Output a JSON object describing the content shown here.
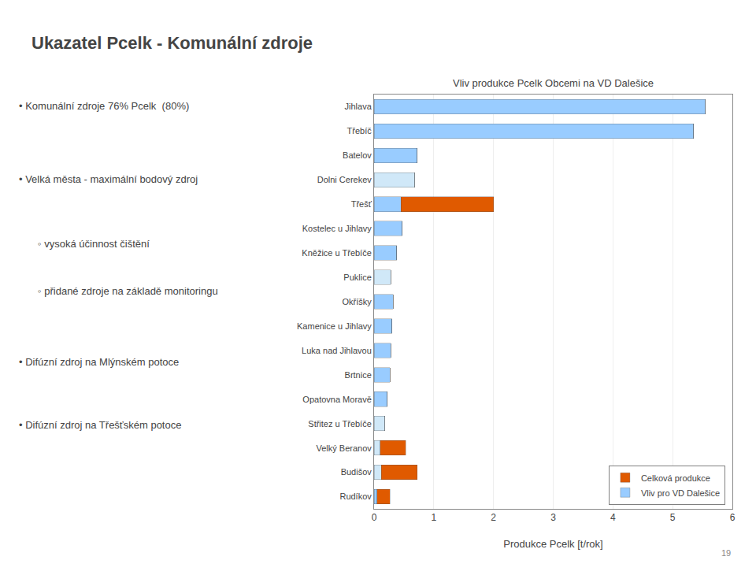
{
  "chart_data": {
    "type": "bar",
    "orientation": "horizontal",
    "stacked": true,
    "title": "Vliv produkce Pcelk Obcemi na VD Dalešice",
    "xlabel": "Produkce Pcelk [t/rok]",
    "categories": [
      "Jihlava",
      "Třebíč",
      "Batelov",
      "Dolni Cerekev",
      "Třešť",
      "Kostelec u Jihlavy",
      "Kněžice u Třebíče",
      "Puklice",
      "Okříšky",
      "Kamenice u Jihlavy",
      "Luka nad Jihlavou",
      "Brtnice",
      "Opatovna Moravě",
      "Střitez u Třebíče",
      "Velký Beranov",
      "Budišov",
      "Rudíkov"
    ],
    "series": [
      {
        "name": "Vliv pro VD Dalešice",
        "colors": [
          "#99ccff",
          "#99ccff",
          "#99ccff",
          "#d0e8f8",
          "#99ccff",
          "#99ccff",
          "#99ccff",
          "#d0e8f8",
          "#99ccff",
          "#99ccff",
          "#99ccff",
          "#99ccff",
          "#99ccff",
          "#d0e8f8",
          "#d0e8f8",
          "#d0e8f8",
          "#99ccff"
        ],
        "values": [
          5.55,
          5.35,
          0.72,
          0.68,
          0.45,
          0.47,
          0.38,
          0.28,
          0.32,
          0.3,
          0.28,
          0.27,
          0.22,
          0.18,
          0.1,
          0.12,
          0.05
        ]
      },
      {
        "name": "Celková produkce",
        "color": "#e05a00",
        "values": [
          0.0,
          0.0,
          0.0,
          0.0,
          1.55,
          0.0,
          0.0,
          0.0,
          0.0,
          0.0,
          0.0,
          0.0,
          0.0,
          0.0,
          0.43,
          0.6,
          0.22
        ]
      }
    ],
    "xlim": [
      0,
      6
    ],
    "xticks": [
      0,
      1,
      2,
      3,
      4,
      5,
      6
    ],
    "grid": true,
    "legend": "lower right",
    "annotations": [
      "Ukazatel Pcelk - Komunální zdroje",
      "• Komunální zdroje 76% Pcelk  (80%)",
      "• Velká města - maximální bodový zdroj",
      "◦ vysoká účinnost čištění",
      "◦ přidané zdroje na základě monitoringu",
      "• Difúzní zdroj na Mlýnském potoce",
      "• Difúzní zdroj na Třešťském potoce",
      "19"
    ]
  }
}
